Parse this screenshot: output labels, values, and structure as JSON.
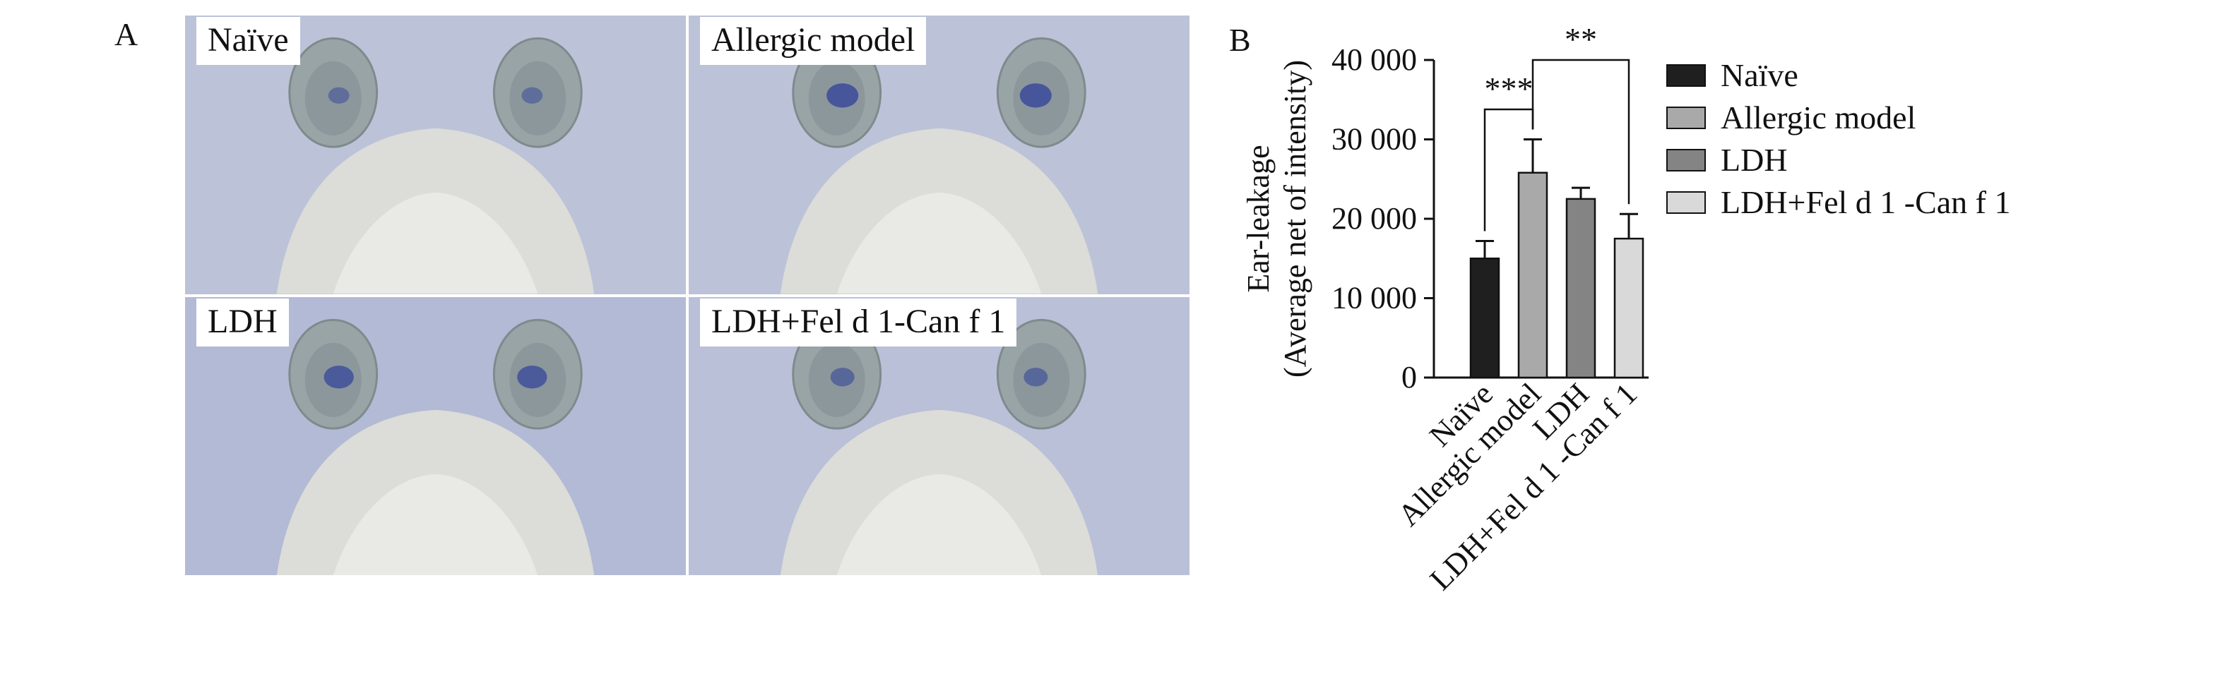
{
  "panel_a": {
    "letter": "A",
    "photos": [
      {
        "label": "Naïve",
        "tint": "#bcc3d8",
        "ear_stain": 0.35
      },
      {
        "label": "Allergic model",
        "tint": "#bcc3d8",
        "ear_stain": 0.9
      },
      {
        "label": "LDH",
        "tint": "#b3bad5",
        "ear_stain": 0.8
      },
      {
        "label": "LDH+Fel d 1-Can f 1",
        "tint": "#b9c0d8",
        "ear_stain": 0.5
      }
    ]
  },
  "panel_b": {
    "letter": "B"
  },
  "chart_data": {
    "type": "bar",
    "categories": [
      "Naïve",
      "Allergic model",
      "LDH",
      "LDH+Fel d 1 -Can f 1"
    ],
    "values": [
      15000,
      25800,
      22500,
      17500
    ],
    "errors": [
      2200,
      4200,
      1400,
      3100
    ],
    "colors": [
      "#1f1f1f",
      "#a9a9a9",
      "#848484",
      "#d9d9d9"
    ],
    "ylabel_line1": "Ear-leakage",
    "ylabel_line2": "(Average net of intensity)",
    "yticks": [
      0,
      10000,
      20000,
      30000,
      40000
    ],
    "ytick_labels": [
      "0",
      "10 000",
      "20 000",
      "30 000",
      "40 000"
    ],
    "ylim": [
      0,
      40000
    ],
    "legend": [
      "Naïve",
      "Allergic model",
      "LDH",
      "LDH+Fel d 1 -Can f 1"
    ],
    "legend_position": "right",
    "significance": [
      {
        "from": 0,
        "to": 1,
        "label": "***"
      },
      {
        "from": 1,
        "to": 3,
        "label": "**"
      }
    ]
  }
}
